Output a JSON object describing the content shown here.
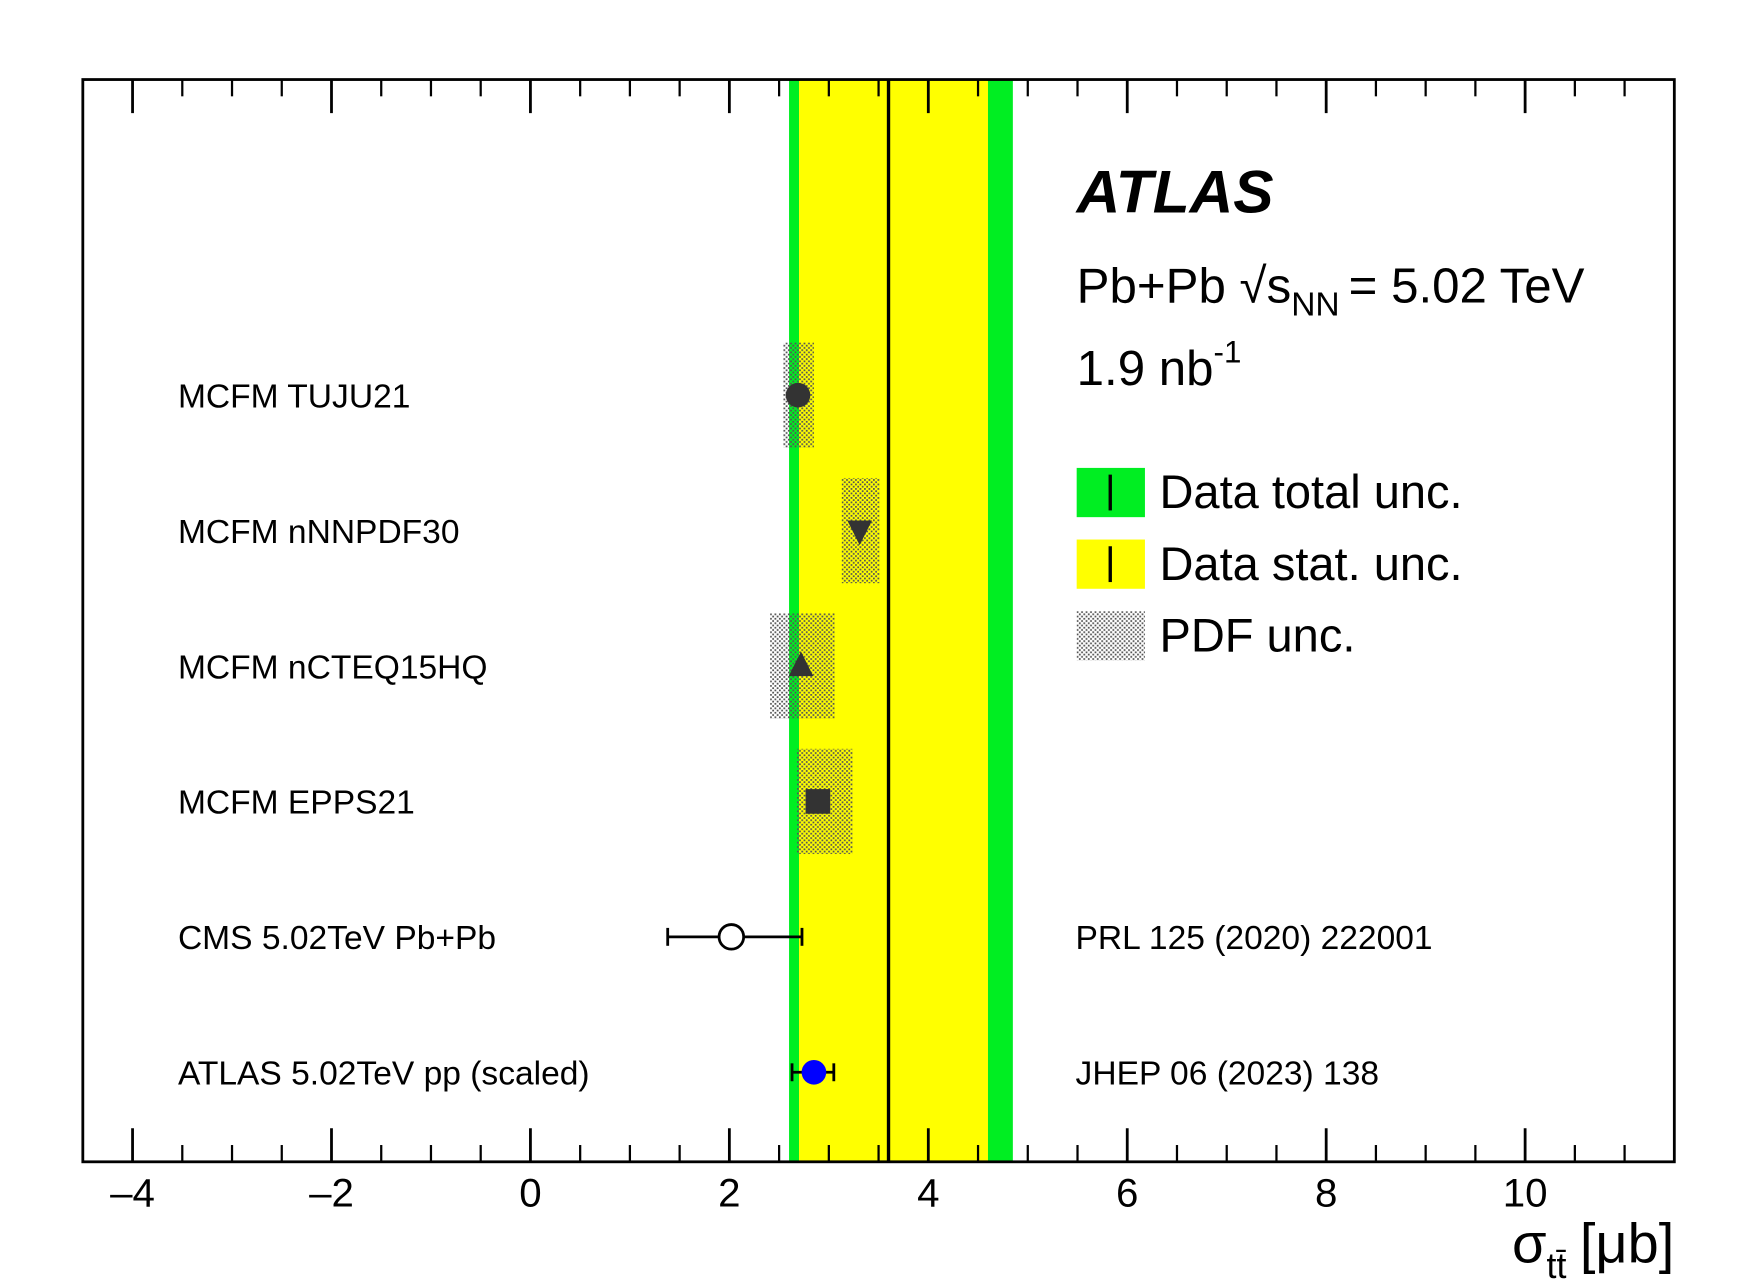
{
  "chart_data": {
    "type": "forest",
    "xlim": [
      -4.5,
      11.5
    ],
    "xticks": [
      {
        "value": -4,
        "label": "–4"
      },
      {
        "value": -2,
        "label": "–2"
      },
      0,
      2,
      4,
      6,
      8,
      10
    ],
    "xlabel": {
      "symbol": "σ",
      "subscript": "tt̄",
      "unit": "[μb]"
    },
    "experiment": "ATLAS",
    "system": "Pb+Pb",
    "energy_sqrt": "√s",
    "energy_sub": "NN",
    "energy_value": "= 5.02 TeV",
    "lumi": "1.9 nb",
    "lumi_sup": "-1",
    "measurement": {
      "value": 3.6,
      "total": [
        2.6,
        4.85
      ],
      "stat": [
        2.7,
        4.6
      ],
      "total_color": "#00ee22",
      "stat_color": "#ffff00",
      "line_color": "#000000"
    },
    "legend": [
      {
        "name": "Data total unc.",
        "style": "total"
      },
      {
        "name": "Data stat. unc.",
        "style": "stat"
      },
      {
        "name": "PDF unc.",
        "style": "pdf"
      }
    ],
    "rows": [
      {
        "name": "MCFM TUJU21",
        "marker": "circle",
        "color": "#333333",
        "value": 2.69,
        "pdf": [
          2.54,
          2.85
        ]
      },
      {
        "name": "MCFM nNNPDF30",
        "marker": "triangle-down",
        "color": "#333333",
        "value": 3.31,
        "pdf": [
          3.13,
          3.51
        ]
      },
      {
        "name": "MCFM nCTEQ15HQ",
        "marker": "triangle-up",
        "color": "#333333",
        "value": 2.72,
        "pdf": [
          2.41,
          3.06
        ]
      },
      {
        "name": "MCFM EPPS21",
        "marker": "square",
        "color": "#333333",
        "value": 2.89,
        "pdf": [
          2.68,
          3.24
        ]
      },
      {
        "name": "CMS 5.02TeV Pb+Pb",
        "marker": "open-circle",
        "color": "#000000",
        "value": 2.02,
        "err": [
          1.38,
          2.73
        ],
        "reference": "PRL 125 (2020) 222001"
      },
      {
        "name": "ATLAS 5.02TeV pp (scaled)",
        "marker": "circle",
        "color": "#0000ff",
        "value": 2.85,
        "err": [
          2.63,
          3.05
        ],
        "reference": "JHEP 06 (2023) 138"
      }
    ]
  }
}
